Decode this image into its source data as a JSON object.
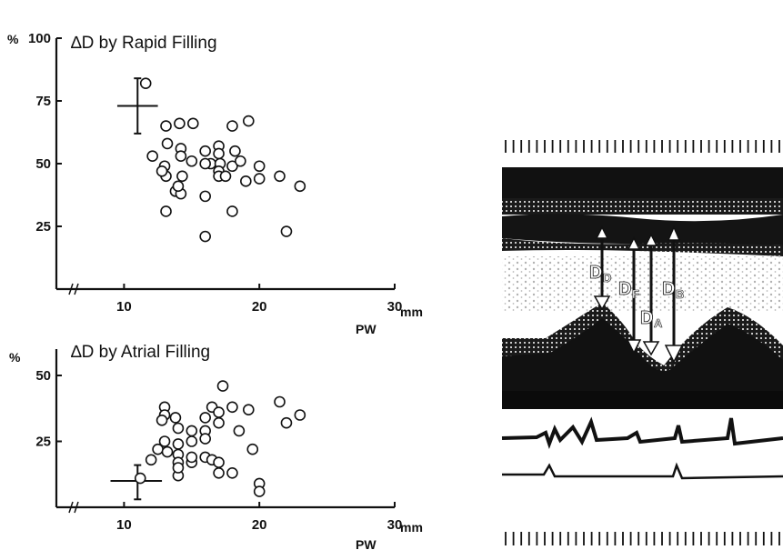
{
  "chart_data": [
    {
      "type": "scatter",
      "title": "∆D by Rapid Filling",
      "ylabel": "%",
      "xlabel": "PW",
      "x_unit": "mm",
      "xlim": [
        5,
        30
      ],
      "ylim": [
        0,
        100
      ],
      "x_ticks": [
        10,
        20,
        30
      ],
      "y_ticks": [
        25,
        50,
        75,
        100
      ],
      "grid": false,
      "points": [
        [
          11.6,
          82
        ],
        [
          13.1,
          65
        ],
        [
          14.1,
          66
        ],
        [
          15.1,
          66
        ],
        [
          18.0,
          65
        ],
        [
          19.2,
          67
        ],
        [
          13.2,
          58
        ],
        [
          14.2,
          56
        ],
        [
          14.2,
          53
        ],
        [
          12.1,
          53
        ],
        [
          13.0,
          49
        ],
        [
          13.1,
          45
        ],
        [
          12.8,
          47
        ],
        [
          14.3,
          45
        ],
        [
          15.0,
          51
        ],
        [
          16.0,
          55
        ],
        [
          16.4,
          50
        ],
        [
          17.0,
          57
        ],
        [
          17.0,
          54
        ],
        [
          17.1,
          50
        ],
        [
          17.0,
          47
        ],
        [
          17.0,
          45
        ],
        [
          17.5,
          45
        ],
        [
          18.0,
          49
        ],
        [
          18.2,
          55
        ],
        [
          18.6,
          51
        ],
        [
          19.0,
          43
        ],
        [
          20.0,
          49
        ],
        [
          20.0,
          44
        ],
        [
          21.5,
          45
        ],
        [
          23.0,
          41
        ],
        [
          13.8,
          39
        ],
        [
          14.2,
          38
        ],
        [
          14.0,
          41
        ],
        [
          16.0,
          37
        ],
        [
          13.1,
          31
        ],
        [
          18.0,
          31
        ],
        [
          16.0,
          21
        ],
        [
          22.0,
          23
        ],
        [
          16.0,
          50
        ]
      ],
      "mean": [
        11.0,
        73
      ],
      "errorbar": {
        "x": [
          9.5,
          12.5
        ],
        "y": [
          62,
          84
        ]
      }
    },
    {
      "type": "scatter",
      "title": "∆D by Atrial Filling",
      "ylabel": "%",
      "xlabel": "PW",
      "x_unit": "mm",
      "xlim": [
        5,
        30
      ],
      "ylim": [
        0,
        60
      ],
      "x_ticks": [
        10,
        20,
        30
      ],
      "y_ticks": [
        25,
        50
      ],
      "grid": false,
      "points": [
        [
          17.3,
          46
        ],
        [
          21.5,
          40
        ],
        [
          13.0,
          38
        ],
        [
          16.5,
          38
        ],
        [
          18.0,
          38
        ],
        [
          13.0,
          35
        ],
        [
          13.8,
          34
        ],
        [
          16.0,
          34
        ],
        [
          17.0,
          36
        ],
        [
          23.0,
          35
        ],
        [
          19.2,
          37
        ],
        [
          22.0,
          32
        ],
        [
          12.8,
          33
        ],
        [
          14.0,
          30
        ],
        [
          15.0,
          29
        ],
        [
          16.0,
          29
        ],
        [
          17.0,
          32
        ],
        [
          18.5,
          29
        ],
        [
          13.0,
          25
        ],
        [
          14.0,
          24
        ],
        [
          15.0,
          25
        ],
        [
          16.0,
          26
        ],
        [
          12.5,
          22
        ],
        [
          13.2,
          21
        ],
        [
          14.0,
          20
        ],
        [
          12.0,
          18
        ],
        [
          14.0,
          17
        ],
        [
          15.0,
          17
        ],
        [
          16.0,
          19
        ],
        [
          16.5,
          18
        ],
        [
          19.5,
          22
        ],
        [
          18.0,
          13
        ],
        [
          14.0,
          12
        ],
        [
          17.0,
          13
        ],
        [
          11.2,
          11
        ],
        [
          20.0,
          9
        ],
        [
          20.0,
          6
        ],
        [
          14.0,
          15
        ],
        [
          17.0,
          17
        ],
        [
          15.0,
          19
        ]
      ],
      "mean": [
        11.0,
        10
      ],
      "errorbar": {
        "x": [
          9.0,
          12.8
        ],
        "y": [
          3,
          16
        ]
      }
    }
  ],
  "echo_panel": {
    "labels": {
      "dd": {
        "main": "D",
        "sub": "D"
      },
      "df": {
        "main": "D",
        "sub": "F"
      },
      "da": {
        "main": "D",
        "sub": "A"
      },
      "db": {
        "main": "D",
        "sub": "B"
      }
    }
  }
}
